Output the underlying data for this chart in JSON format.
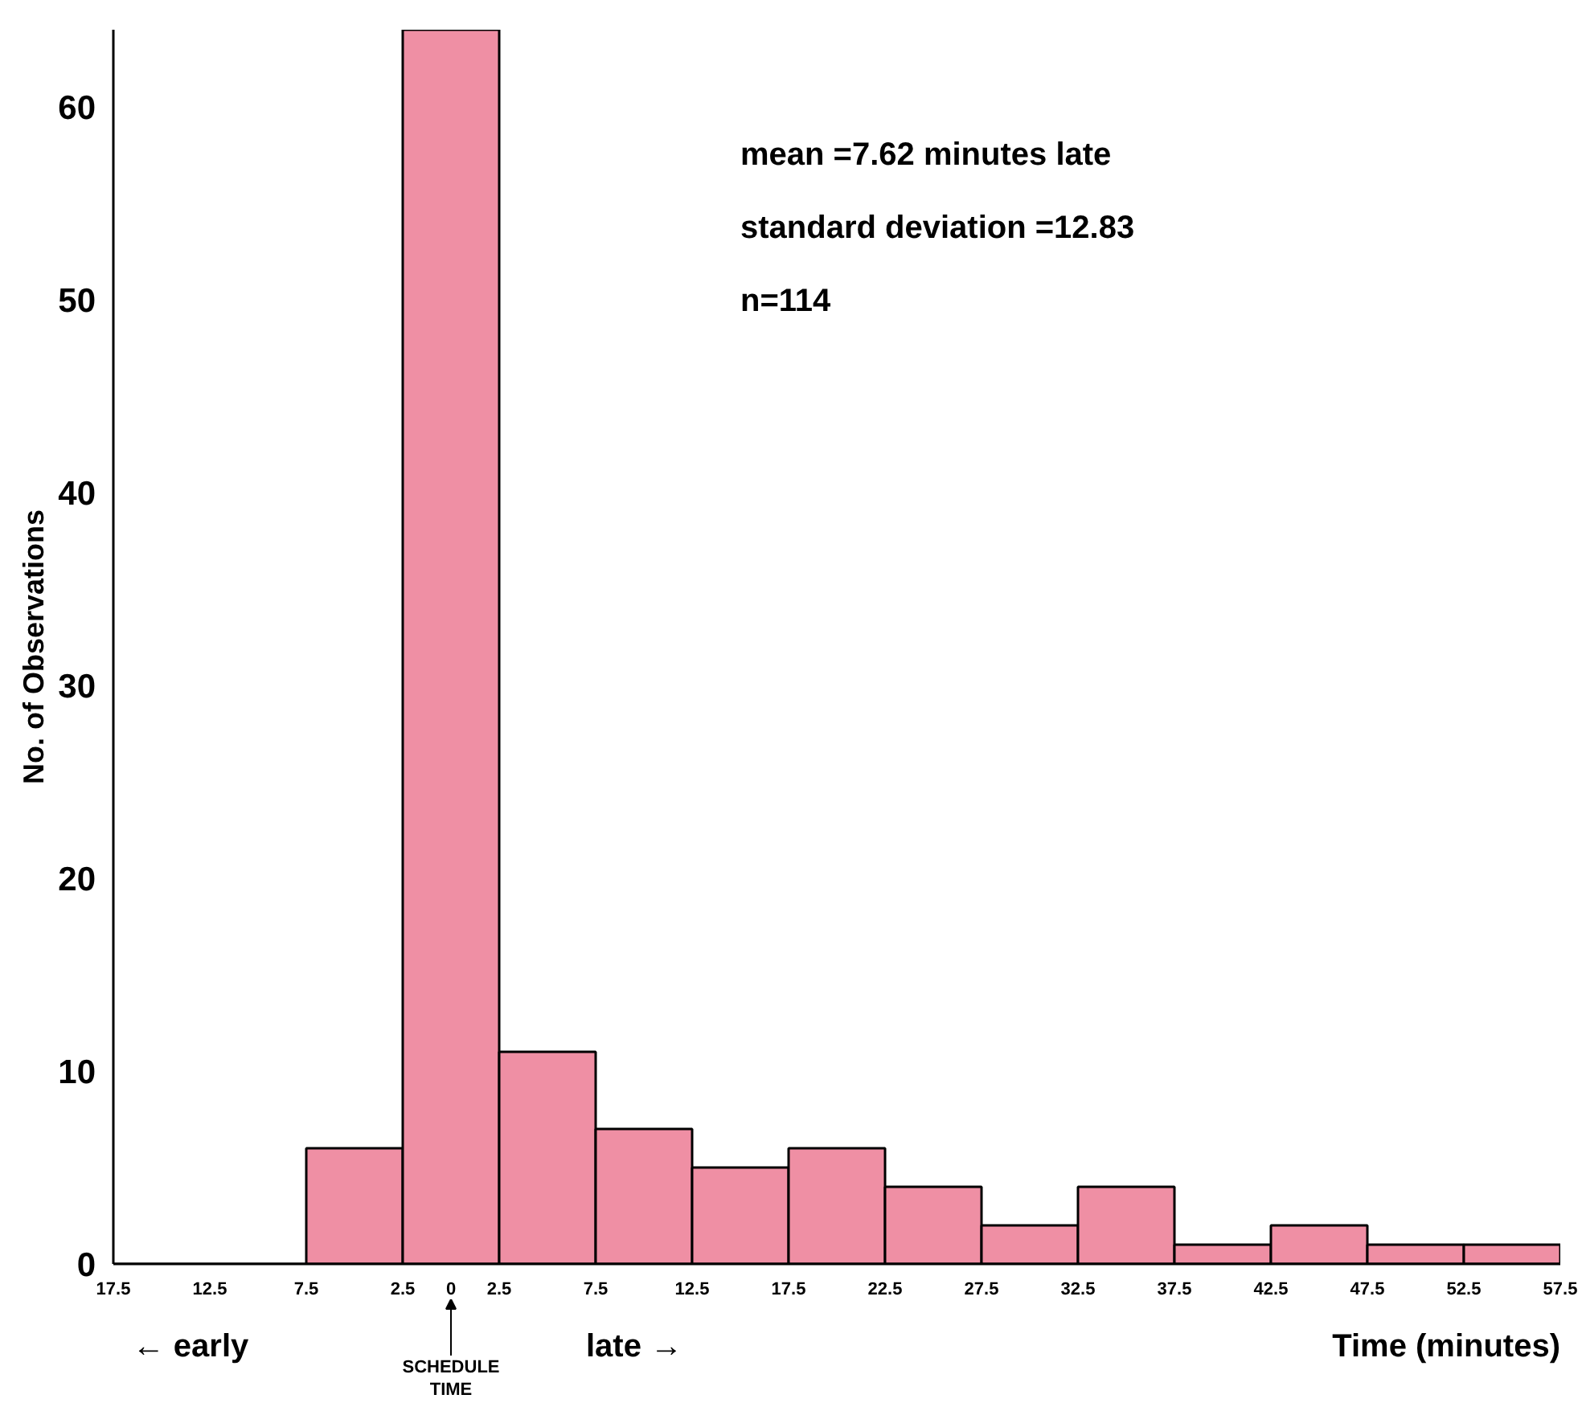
{
  "chart_data": {
    "type": "histogram",
    "xlabel": "Time (minutes)",
    "ylabel": "No. of Observations",
    "bins": [
      -17.5,
      -12.5,
      -7.5,
      -2.5,
      2.5,
      7.5,
      12.5,
      17.5,
      22.5,
      27.5,
      32.5,
      37.5,
      42.5,
      47.5,
      52.5,
      57.5
    ],
    "values": [
      0,
      0,
      6,
      64,
      11,
      7,
      5,
      6,
      4,
      2,
      4,
      1,
      2,
      1,
      1
    ],
    "color": "#ef8fa4",
    "xlim": [
      -17.5,
      57.5
    ],
    "ylim": [
      0,
      64
    ],
    "xticks": [
      {
        "value": -17.5,
        "label": "17.5"
      },
      {
        "value": -12.5,
        "label": "12.5"
      },
      {
        "value": -7.5,
        "label": "7.5"
      },
      {
        "value": -2.5,
        "label": "2.5"
      },
      0,
      2.5,
      7.5,
      12.5,
      17.5,
      22.5,
      27.5,
      32.5,
      37.5,
      42.5,
      47.5,
      52.5,
      57.5
    ],
    "yticks": [
      0,
      10,
      20,
      30,
      40,
      50,
      60
    ],
    "grid": false,
    "annotations": [
      "mean =7.62 minutes late",
      "standard deviation =12.83",
      "n=114",
      "← early",
      "late →",
      "SCHEDULE\nTIME"
    ]
  }
}
